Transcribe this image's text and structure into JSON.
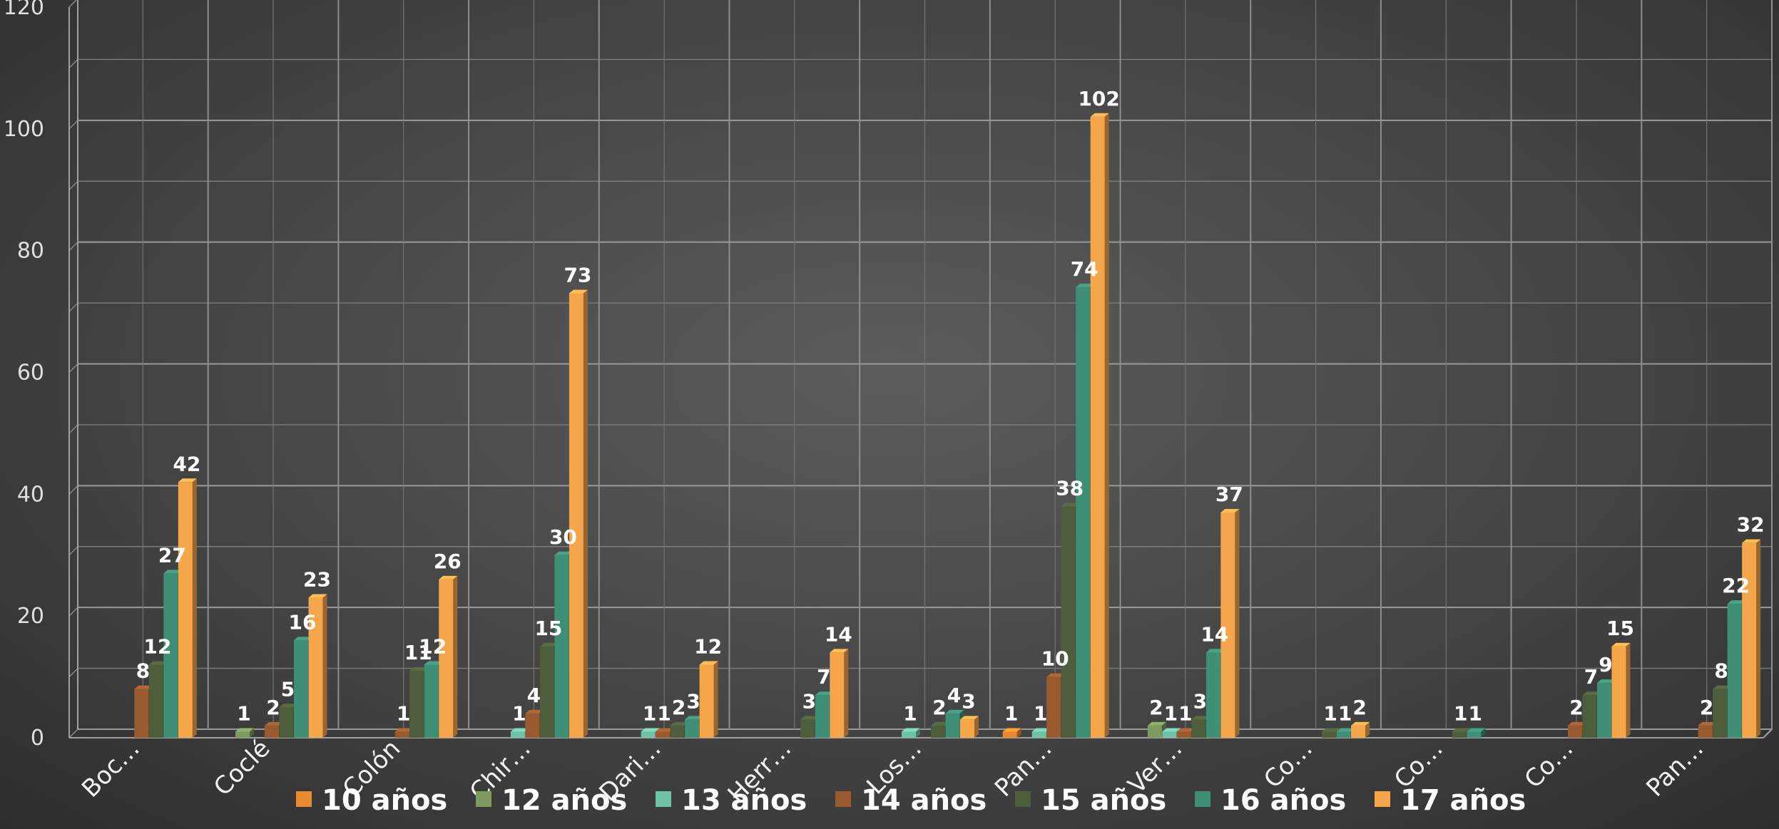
{
  "chart_data": {
    "type": "bar",
    "title": "",
    "xlabel": "",
    "ylabel": "",
    "ylim": [
      0,
      120
    ],
    "yticks": [
      "0",
      "20",
      "40",
      "60",
      "80",
      "100",
      "120"
    ],
    "grid": true,
    "legend_position": "bottom",
    "categories": [
      "Boc…",
      "Coclé",
      "Colón",
      "Chir…",
      "Dari…",
      "Herr…",
      "Los…",
      "Pan…",
      "Ver…",
      "Co…",
      "Co…",
      "Co…",
      "Pan…"
    ],
    "series": [
      {
        "name": "10 años",
        "color": "#e88a2e",
        "values": [
          0,
          0,
          0,
          0,
          0,
          0,
          0,
          1,
          0,
          0,
          0,
          0,
          0
        ]
      },
      {
        "name": "12 años",
        "color": "#7f9a5f",
        "values": [
          0,
          1,
          0,
          0,
          0,
          0,
          0,
          0,
          2,
          0,
          0,
          0,
          0
        ]
      },
      {
        "name": "13 años",
        "color": "#6fc2a8",
        "values": [
          0,
          0,
          0,
          1,
          1,
          0,
          1,
          1,
          1,
          0,
          0,
          0,
          0
        ]
      },
      {
        "name": "14 años",
        "color": "#9a5a30",
        "values": [
          8,
          2,
          1,
          4,
          1,
          0,
          0,
          10,
          1,
          0,
          0,
          2,
          2
        ]
      },
      {
        "name": "15 años",
        "color": "#4e5e3c",
        "values": [
          12,
          5,
          11,
          15,
          2,
          3,
          2,
          38,
          3,
          1,
          1,
          7,
          8
        ]
      },
      {
        "name": "16 años",
        "color": "#3f8e76",
        "values": [
          27,
          16,
          12,
          30,
          3,
          7,
          4,
          74,
          14,
          1,
          1,
          9,
          22
        ]
      },
      {
        "name": "17 años",
        "color": "#f5a54a",
        "values": [
          42,
          23,
          26,
          73,
          12,
          14,
          3,
          102,
          37,
          2,
          0,
          15,
          32
        ]
      }
    ]
  }
}
